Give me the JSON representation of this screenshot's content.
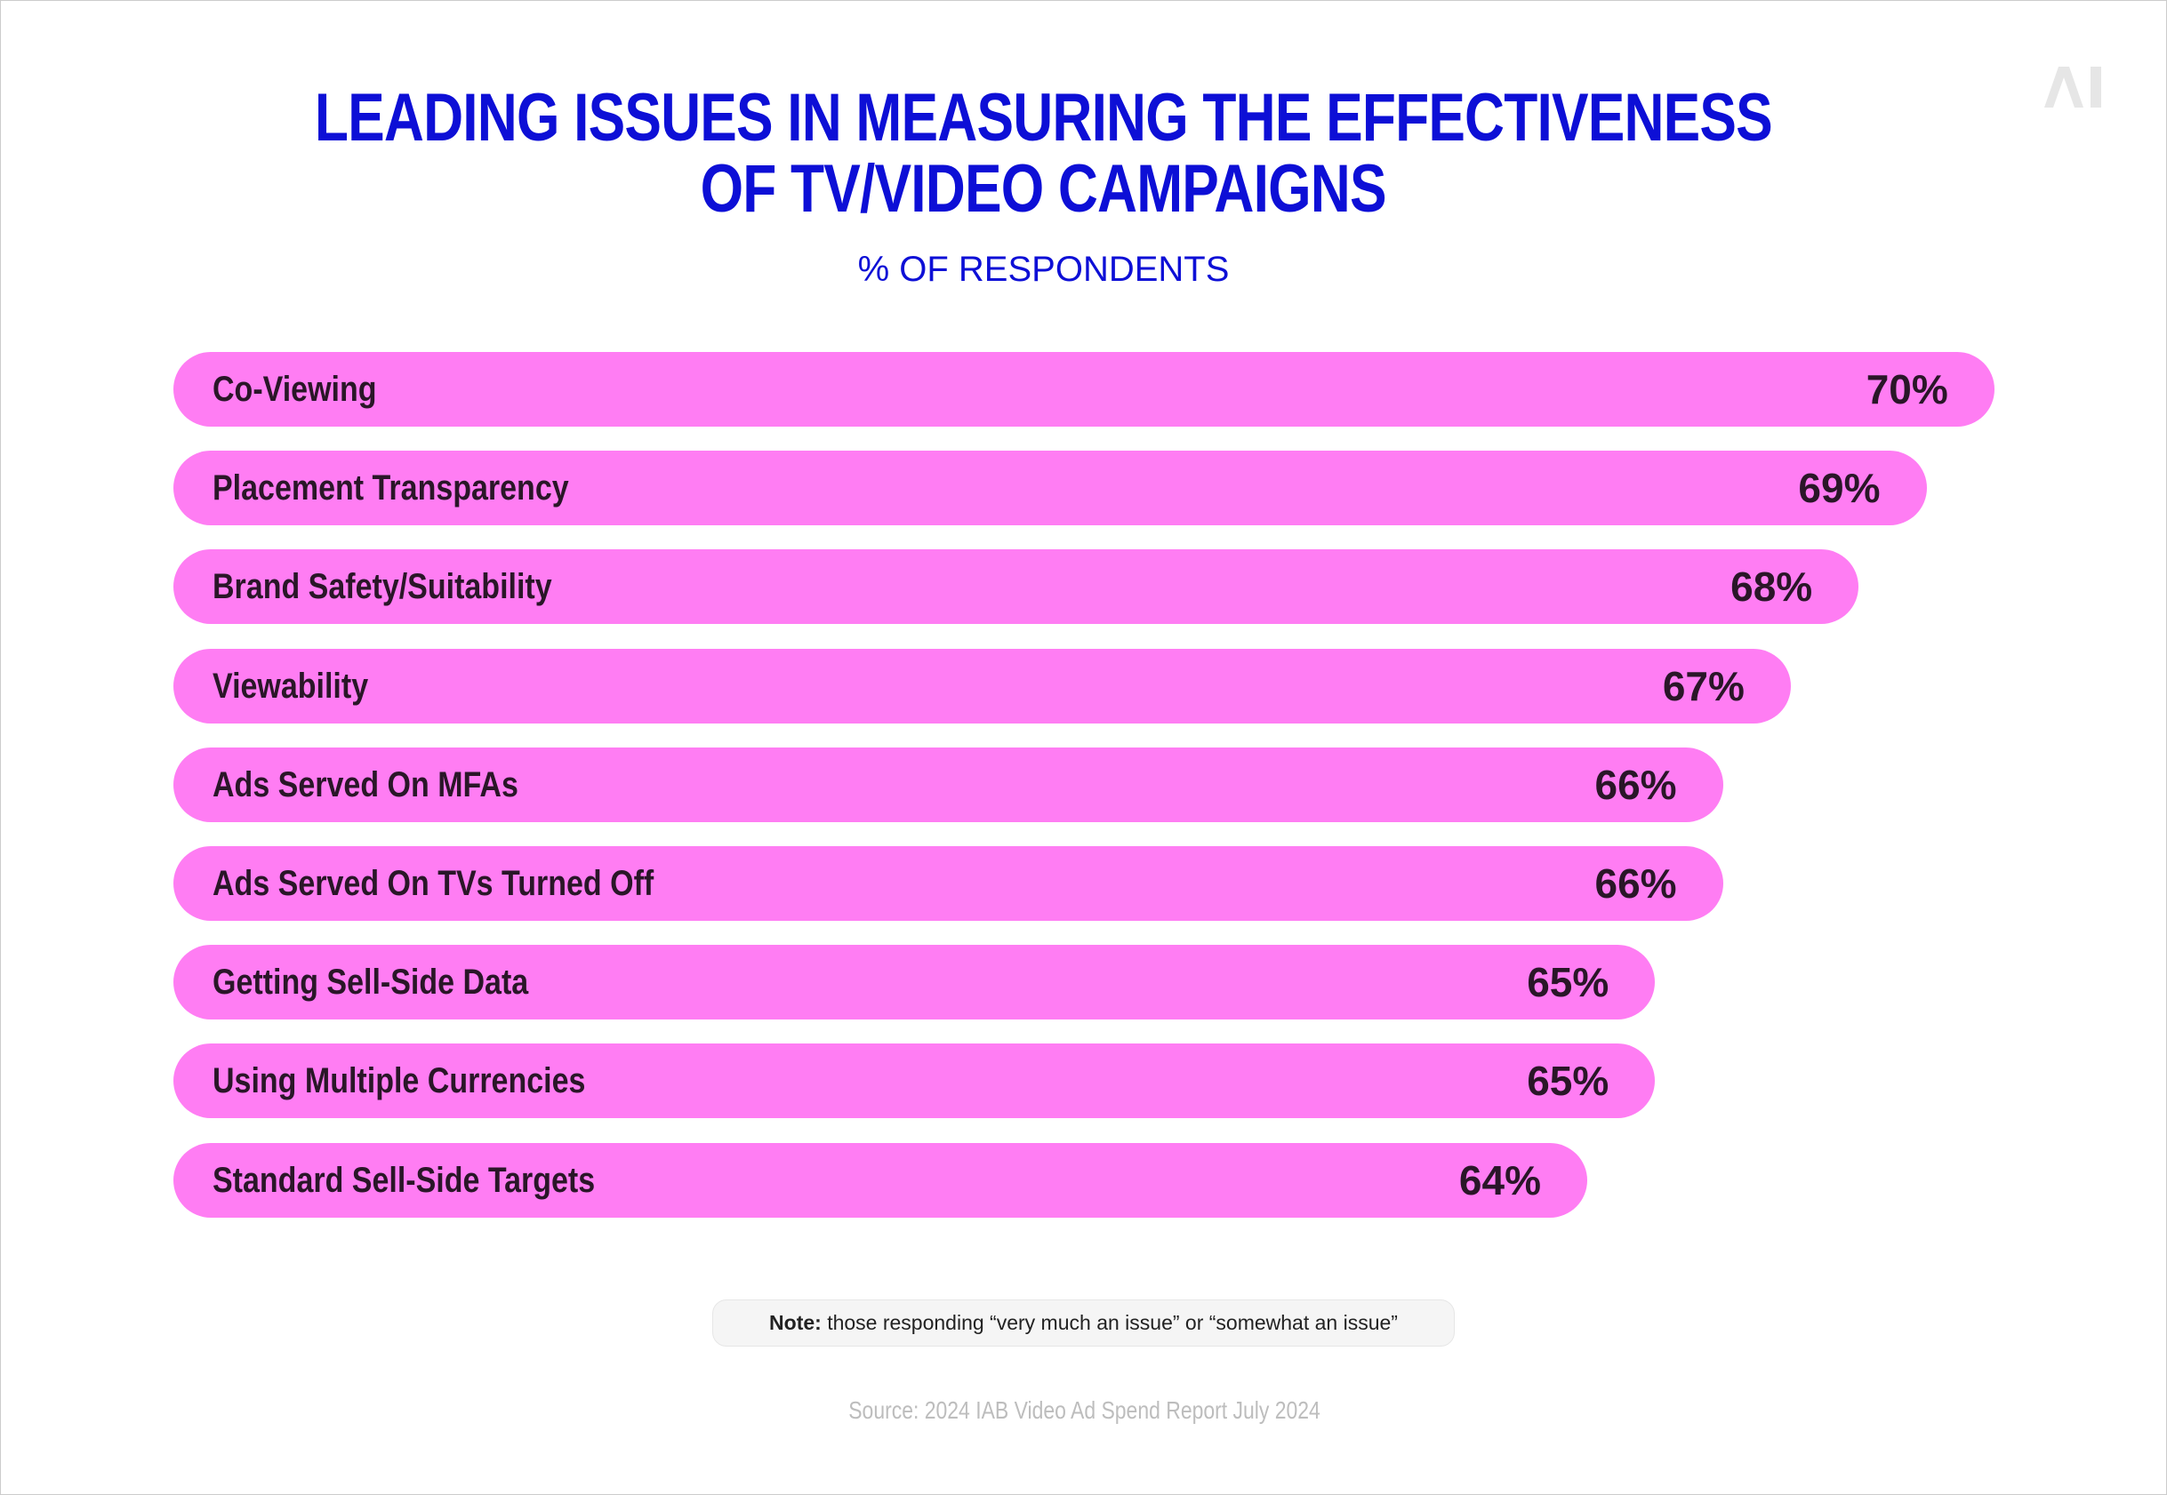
{
  "logo_text": "AI",
  "chart_data": {
    "type": "bar",
    "orientation": "horizontal",
    "title": [
      "LEADING ISSUES IN MEASURING THE EFFECTIVENESS",
      "OF TV/VIDEO CAMPAIGNS"
    ],
    "subtitle": "% OF RESPONDENTS",
    "categories": [
      "Co-Viewing",
      "Placement Transparency",
      "Brand Safety/Suitability",
      "Viewability",
      "Ads Served On MFAs",
      "Ads Served On TVs Turned Off",
      "Getting Sell-Side Data",
      "Using Multiple Currencies",
      "Standard Sell-Side Targets"
    ],
    "values": [
      70,
      69,
      68,
      67,
      66,
      66,
      65,
      65,
      64
    ],
    "value_labels": [
      "70%",
      "69%",
      "68%",
      "67%",
      "66%",
      "66%",
      "65%",
      "65%",
      "64%"
    ],
    "unit": "%",
    "bar_color": "#ff7df3",
    "title_color": "#0d0fd6",
    "grid": false,
    "legend": "none"
  },
  "note": {
    "label": "Note:",
    "text": "those responding “very much an issue” or “somewhat an issue”"
  },
  "source": "Source: 2024 IAB Video Ad Spend Report July 2024"
}
